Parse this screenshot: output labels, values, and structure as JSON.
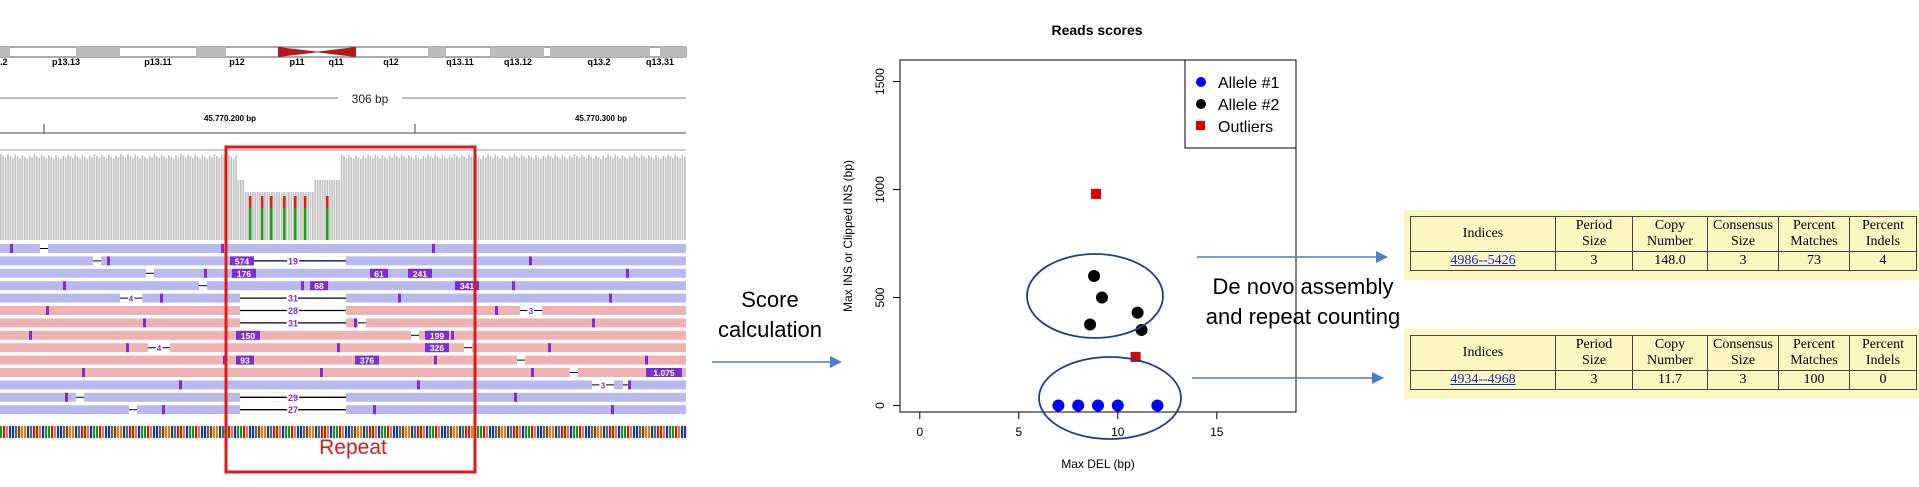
{
  "igv": {
    "cytobands": [
      "p13.13",
      "p13.11",
      "p12",
      "p11",
      "q11",
      "q12",
      "q13.11",
      "q13.12",
      "q13.2",
      "q13.31"
    ],
    "cytoband_left_partial": ".2",
    "span_label": "306 bp",
    "ruler_ticks": [
      "45.770.200 bp",
      "45.770.300 bp"
    ],
    "insertion_labels": [
      "19",
      "31",
      "28",
      "31",
      "29",
      "27",
      "4",
      "4",
      "3",
      "3"
    ],
    "insertion_sizes": [
      "574",
      "176",
      "150",
      "93",
      "68",
      "61",
      "241",
      "341",
      "199",
      "326",
      "376",
      "1.075"
    ]
  },
  "labels": {
    "repeat": "Repeat",
    "score_calculation": "Score\ncalculation",
    "de_novo": "De novo assembly\nand repeat counting"
  },
  "chart_data": {
    "type": "scatter",
    "title": "Reads scores",
    "xlabel": "Max DEL (bp)",
    "ylabel": "Max INS or Clipped INS (bp)",
    "xlim": [
      -1,
      19
    ],
    "ylim": [
      -30,
      1600
    ],
    "xticks": [
      0,
      5,
      10,
      15
    ],
    "yticks": [
      0,
      500,
      1000,
      1500
    ],
    "legend_position": "top-right",
    "series": [
      {
        "name": "Allele #1",
        "color": "#0000ff",
        "marker": "circle",
        "x": [
          7,
          8,
          9,
          10,
          12
        ],
        "y": [
          0,
          0,
          0,
          0,
          0
        ]
      },
      {
        "name": "Allele #2",
        "color": "#000000",
        "marker": "circle",
        "x": [
          8.8,
          9.2,
          11,
          11.2,
          8.6
        ],
        "y": [
          600,
          500,
          430,
          350,
          375
        ]
      },
      {
        "name": "Outliers",
        "color": "#e00000",
        "marker": "square",
        "x": [
          8.9,
          10.9
        ],
        "y": [
          980,
          225
        ]
      }
    ]
  },
  "trf_tables": [
    {
      "headers": [
        "Indices",
        "Period\nSize",
        "Copy\nNumber",
        "Consensus\nSize",
        "Percent\nMatches",
        "Percent\nIndels"
      ],
      "row": [
        "4986--5426",
        "3",
        "148.0",
        "3",
        "73",
        "4"
      ]
    },
    {
      "headers": [
        "Indices",
        "Period\nSize",
        "Copy\nNumber",
        "Consensus\nSize",
        "Percent\nMatches",
        "Percent\nIndels"
      ],
      "row": [
        "4934--4968",
        "3",
        "11.7",
        "3",
        "100",
        "0"
      ]
    }
  ],
  "colors": {
    "repeat_box": "#e0191b",
    "read_blue": "#b9b9ee",
    "read_pink": "#eeb2b2",
    "insertion": "#7b2fd0",
    "arrow": "#4f7ec2",
    "table_bg": "#fbf6bf",
    "ellipse": "#1f3f8c"
  }
}
